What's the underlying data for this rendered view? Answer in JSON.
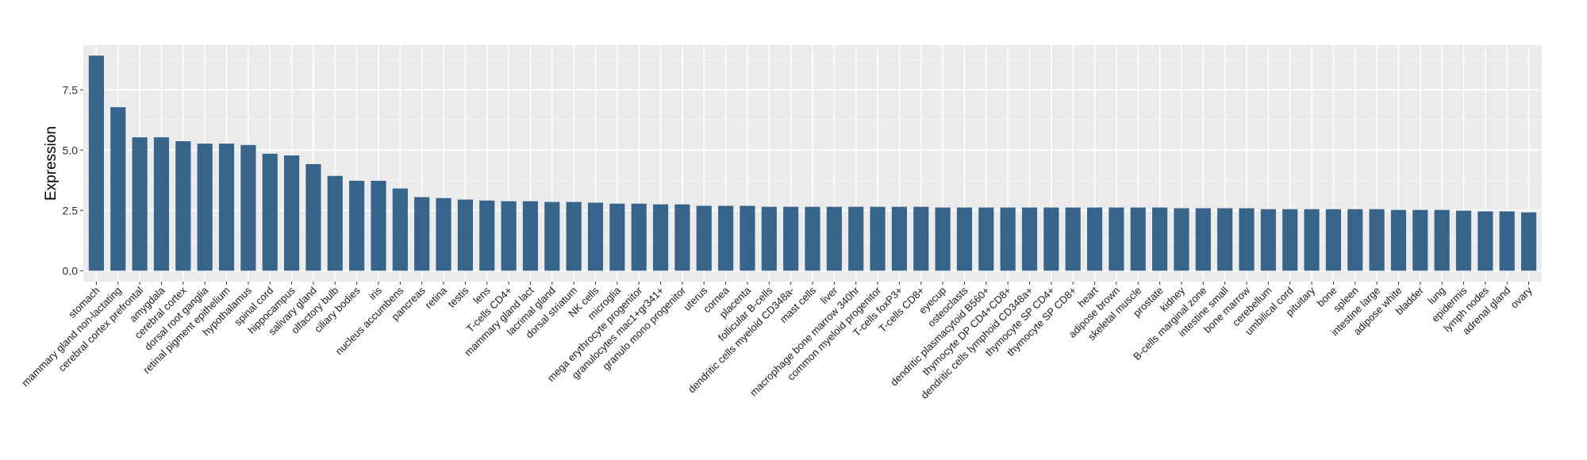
{
  "chart_data": {
    "type": "bar",
    "title": "",
    "xlabel": "",
    "ylabel": "Expression",
    "ylim": [
      -0.45,
      9.35
    ],
    "yticks": [
      0.0,
      2.5,
      5.0,
      7.5
    ],
    "ytick_labels": [
      "0.0",
      "2.5",
      "5.0",
      "7.5"
    ],
    "grid": true,
    "bar_color": "#36648b",
    "panel_color": "#ebebeb",
    "categories": [
      "stomach",
      "mammary gland non-lactating",
      "cerebral cortex prefrontal",
      "amygdala",
      "cerebral cortex",
      "dorsal root ganglia",
      "retinal pigment epithelium",
      "hypothalamus",
      "spinal cord",
      "hippocampus",
      "salivary gland",
      "olfactory bulb",
      "ciliary bodies",
      "iris",
      "nucleus accumbens",
      "pancreas",
      "retina",
      "testis",
      "lens",
      "T-cells CD4+",
      "mammary gland  lact",
      "lacrimal gland",
      "dorsal striatum",
      "NK cells",
      "microglia",
      "mega erythrocyte progenitor",
      "granulocytes mac1+gr341+",
      "granulo mono progenitor",
      "uterus",
      "cornea",
      "placenta",
      "follicular B-cells",
      "dendritic cells myeloid CD348a-",
      "mast cells",
      "liver",
      "macrophage bone marrow 340hr",
      "common myeloid progenitor",
      "T-cells foxP3+",
      "T-cells CD8+",
      "eyecup",
      "osteoclasts",
      "dendritic plasmacytoid B560+",
      "thymocyte DP CD4+CD8+",
      "dendritic cells lymphoid CD348a+",
      "thymocyte SP CD4+",
      "thymocyte SP CD8+",
      "heart",
      "adipose brown",
      "skeletal muscle",
      "prostate",
      "kidney",
      "B-cells marginal zone",
      "intestine small",
      "bone marrow",
      "cerebellum",
      "umbilical cord",
      "pituitary",
      "bone",
      "spleen",
      "intestine large",
      "adipose white",
      "bladder",
      "lung",
      "epidermis",
      "lymph nodes",
      "adrenal gland",
      "ovary"
    ],
    "values": [
      8.92,
      6.78,
      5.53,
      5.53,
      5.37,
      5.27,
      5.27,
      5.21,
      4.85,
      4.78,
      4.42,
      3.93,
      3.73,
      3.73,
      3.41,
      3.05,
      3.01,
      2.95,
      2.91,
      2.88,
      2.88,
      2.85,
      2.85,
      2.82,
      2.78,
      2.78,
      2.75,
      2.75,
      2.69,
      2.69,
      2.69,
      2.65,
      2.65,
      2.65,
      2.65,
      2.65,
      2.65,
      2.65,
      2.65,
      2.62,
      2.62,
      2.62,
      2.62,
      2.62,
      2.62,
      2.62,
      2.62,
      2.62,
      2.62,
      2.62,
      2.59,
      2.59,
      2.59,
      2.59,
      2.55,
      2.55,
      2.55,
      2.55,
      2.55,
      2.55,
      2.52,
      2.52,
      2.52,
      2.49,
      2.46,
      2.46,
      2.42
    ]
  }
}
